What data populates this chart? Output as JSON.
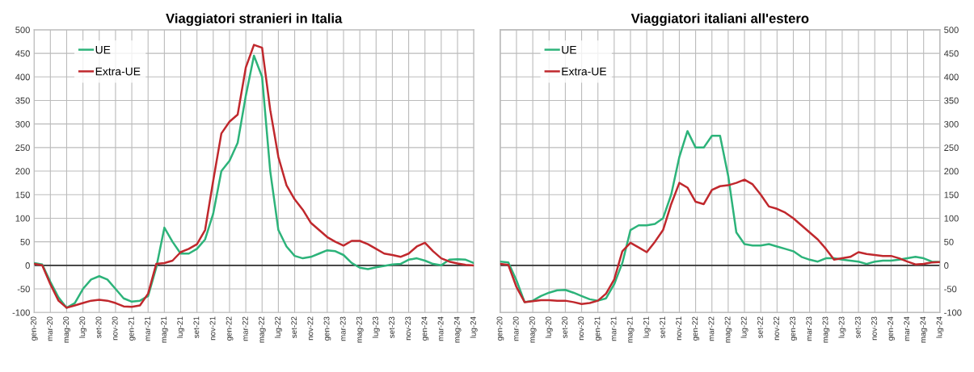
{
  "chart_data": [
    {
      "type": "line",
      "title": "Viaggiatori stranieri in Italia",
      "categories": [
        "gen-20",
        null,
        "mar-20",
        null,
        "mag-20",
        null,
        "lug-20",
        null,
        "set-20",
        null,
        "nov-20",
        null,
        "gen-21",
        null,
        "mar-21",
        null,
        "mag-21",
        null,
        "lug-21",
        null,
        "set-21",
        null,
        "nov-21",
        null,
        "gen-22",
        null,
        "mar-22",
        null,
        "mag-22",
        null,
        "lug-22",
        null,
        "set-22",
        null,
        "nov-22",
        null,
        "gen-23",
        null,
        "mar-23",
        null,
        "mag-23",
        null,
        "lug-23",
        null,
        "set-23",
        null,
        "nov-23",
        null,
        "gen-24",
        null,
        "mar-24",
        null,
        "mag-24",
        null,
        "lug-24"
      ],
      "ylim": [
        -100,
        500
      ],
      "yticks": [
        -100,
        -50,
        0,
        50,
        100,
        150,
        200,
        250,
        300,
        350,
        400,
        450,
        500
      ],
      "grid": true,
      "legend": "top left",
      "marker": "none",
      "line_style": "solid",
      "ref_lines": [
        {
          "axis": "y",
          "value": 0,
          "color": "#333333"
        }
      ],
      "series": [
        {
          "name": "UE",
          "color": "#2db37a",
          "values": [
            5,
            2,
            -35,
            -68,
            -90,
            -80,
            -50,
            -30,
            -23,
            -30,
            -50,
            -70,
            -77,
            -75,
            -65,
            -5,
            80,
            50,
            25,
            25,
            35,
            55,
            110,
            200,
            222,
            260,
            360,
            445,
            400,
            200,
            75,
            40,
            20,
            15,
            18,
            25,
            32,
            30,
            22,
            5,
            -5,
            -8,
            -4,
            -1,
            2,
            3,
            12,
            15,
            10,
            3,
            0,
            12,
            13,
            12,
            5
          ]
        },
        {
          "name": "Extra-UE",
          "color": "#c0282d",
          "values": [
            3,
            0,
            -40,
            -75,
            -90,
            -85,
            -80,
            -75,
            -73,
            -75,
            -80,
            -87,
            -88,
            -85,
            -60,
            3,
            5,
            10,
            28,
            35,
            45,
            75,
            180,
            280,
            305,
            320,
            420,
            468,
            462,
            330,
            230,
            170,
            140,
            118,
            90,
            75,
            60,
            50,
            42,
            52,
            52,
            45,
            35,
            25,
            22,
            18,
            25,
            40,
            48,
            30,
            15,
            8,
            4,
            1,
            0
          ]
        }
      ]
    },
    {
      "type": "line",
      "title": "Viaggiatori italiani all'estero",
      "categories": [
        "gen-20",
        null,
        "mar-20",
        null,
        "mag-20",
        null,
        "lug-20",
        null,
        "set-20",
        null,
        "nov-20",
        null,
        "gen-21",
        null,
        "mar-21",
        null,
        "mag-21",
        null,
        "lug-21",
        null,
        "set-21",
        null,
        "nov-21",
        null,
        "gen-22",
        null,
        "mar-22",
        null,
        "mag-22",
        null,
        "lug-22",
        null,
        "set-22",
        null,
        "nov-22",
        null,
        "gen-23",
        null,
        "mar-23",
        null,
        "mag-23",
        null,
        "lug-23",
        null,
        "set-23",
        null,
        "nov-23",
        null,
        "gen-24",
        null,
        "mar-24",
        null,
        "mag-24",
        null,
        "lug-24"
      ],
      "y2lim": [
        -100,
        500
      ],
      "y2ticks": [
        -100,
        -50,
        0,
        50,
        100,
        150,
        200,
        250,
        300,
        350,
        400,
        450,
        500
      ],
      "grid": true,
      "legend": "top left",
      "marker": "none",
      "line_style": "solid",
      "ref_lines": [
        {
          "axis": "y2",
          "value": 0,
          "color": "#333333"
        }
      ],
      "series": [
        {
          "name": "UE",
          "color": "#2db37a",
          "axis": "y2",
          "values": [
            8,
            6,
            -32,
            -78,
            -75,
            -65,
            -58,
            -53,
            -52,
            -58,
            -65,
            -72,
            -75,
            -70,
            -40,
            5,
            75,
            85,
            85,
            88,
            100,
            150,
            230,
            285,
            250,
            250,
            275,
            275,
            190,
            70,
            45,
            42,
            42,
            45,
            40,
            35,
            30,
            18,
            12,
            8,
            15,
            15,
            12,
            10,
            8,
            3,
            8,
            10,
            10,
            12,
            15,
            18,
            15,
            8,
            7
          ]
        },
        {
          "name": "Extra-UE",
          "color": "#c0282d",
          "axis": "y2",
          "values": [
            3,
            1,
            -46,
            -78,
            -76,
            -74,
            -74,
            -75,
            -75,
            -78,
            -82,
            -80,
            -75,
            -60,
            -30,
            30,
            48,
            38,
            28,
            50,
            75,
            130,
            175,
            165,
            135,
            130,
            160,
            168,
            170,
            175,
            182,
            172,
            150,
            125,
            120,
            112,
            100,
            85,
            70,
            55,
            35,
            12,
            15,
            18,
            28,
            24,
            22,
            20,
            20,
            15,
            8,
            2,
            3,
            6,
            7
          ]
        }
      ]
    }
  ]
}
